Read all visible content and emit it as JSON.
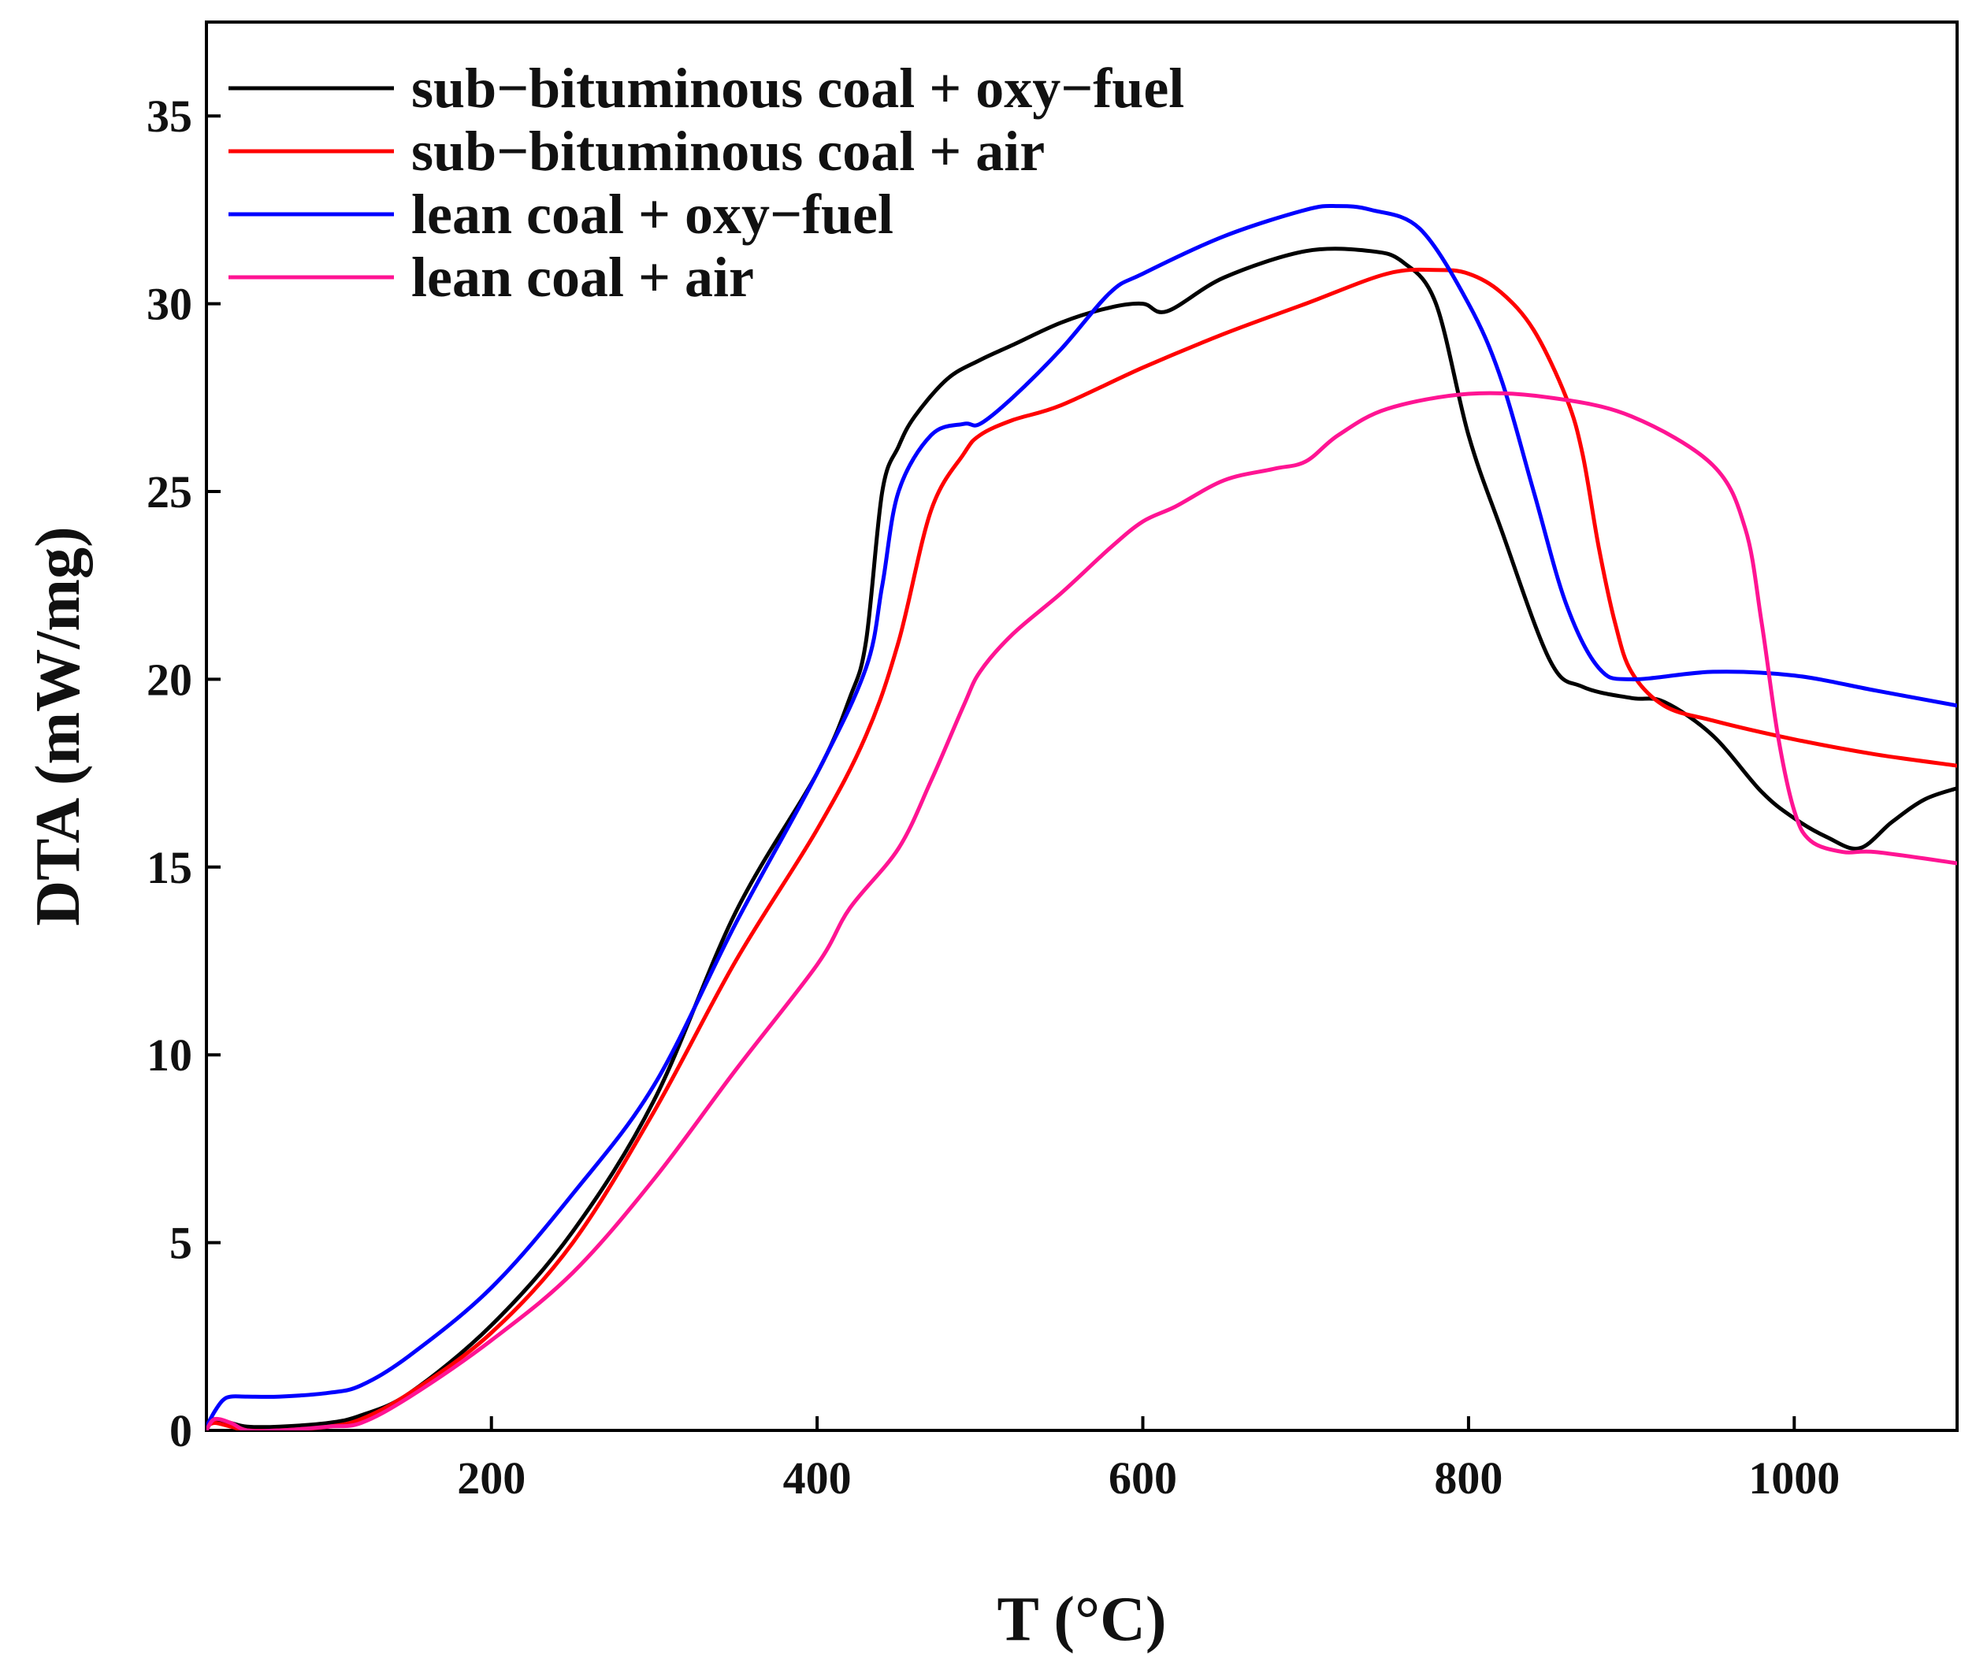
{
  "chart_data": {
    "type": "line",
    "title": "",
    "xlabel": "T (°C)",
    "ylabel": "DTA (mW/mg)",
    "xlim": [
      25,
      1100
    ],
    "ylim": [
      0,
      37.5
    ],
    "xticks": [
      {
        "value": 200,
        "label": "200"
      },
      {
        "value": 400,
        "label": "400"
      },
      {
        "value": 600,
        "label": "600"
      },
      {
        "value": 800,
        "label": "800"
      },
      {
        "value": 1000,
        "label": "1000"
      }
    ],
    "yticks": [
      {
        "value": 0,
        "label": "0"
      },
      {
        "value": 5,
        "label": "5"
      },
      {
        "value": 10,
        "label": "10"
      },
      {
        "value": 15,
        "label": "15"
      },
      {
        "value": 20,
        "label": "20"
      },
      {
        "value": 25,
        "label": "25"
      },
      {
        "value": 30,
        "label": "30"
      },
      {
        "value": 35,
        "label": "35"
      }
    ],
    "legend_position": "top-left",
    "grid": false,
    "series": [
      {
        "name": "sub−bituminous coal + oxy−fuel",
        "color": "#000000",
        "x": [
          25,
          30,
          40,
          50,
          70,
          100,
          120,
          150,
          200,
          250,
          300,
          350,
          400,
          420,
          430,
          440,
          450,
          460,
          480,
          500,
          520,
          550,
          580,
          600,
          615,
          650,
          700,
          740,
          760,
          780,
          800,
          820,
          850,
          870,
          900,
          920,
          950,
          980,
          1000,
          1020,
          1040,
          1060,
          1080,
          1100
        ],
        "y": [
          0.2,
          0.3,
          0.2,
          0.1,
          0.1,
          0.2,
          0.4,
          1.0,
          2.8,
          5.3,
          8.8,
          13.8,
          17.5,
          19.5,
          21.0,
          25.0,
          26.2,
          27.0,
          28.0,
          28.5,
          28.9,
          29.5,
          29.9,
          30.0,
          29.8,
          30.7,
          31.4,
          31.4,
          31.1,
          30.0,
          26.5,
          24.0,
          20.5,
          19.8,
          19.5,
          19.4,
          18.5,
          17.0,
          16.3,
          15.8,
          15.5,
          16.2,
          16.8,
          17.1
        ]
      },
      {
        "name": "sub−bituminous coal + air",
        "color": "#ff0000",
        "x": [
          25,
          30,
          40,
          50,
          70,
          100,
          120,
          150,
          200,
          250,
          300,
          350,
          400,
          430,
          450,
          470,
          490,
          500,
          520,
          550,
          600,
          650,
          700,
          750,
          780,
          800,
          820,
          840,
          860,
          870,
          880,
          890,
          900,
          920,
          950,
          1000,
          1050,
          1100
        ],
        "y": [
          0.1,
          0.2,
          0.1,
          0.0,
          0.0,
          0.1,
          0.3,
          1.0,
          2.6,
          5.0,
          8.5,
          12.5,
          16.0,
          18.5,
          21.0,
          24.5,
          26.0,
          26.5,
          26.9,
          27.3,
          28.3,
          29.2,
          30.0,
          30.8,
          30.9,
          30.8,
          30.3,
          29.3,
          27.5,
          26.0,
          23.5,
          21.5,
          20.2,
          19.3,
          18.9,
          18.4,
          18.0,
          17.7
        ]
      },
      {
        "name": "lean coal + oxy−fuel",
        "color": "#0000ff",
        "x": [
          25,
          30,
          35,
          40,
          50,
          70,
          100,
          120,
          150,
          200,
          250,
          300,
          350,
          400,
          430,
          440,
          450,
          470,
          490,
          500,
          520,
          550,
          580,
          600,
          650,
          700,
          720,
          740,
          770,
          800,
          820,
          840,
          860,
          880,
          900,
          950,
          1000,
          1050,
          1100
        ],
        "y": [
          0.1,
          0.5,
          0.8,
          0.9,
          0.9,
          0.9,
          1.0,
          1.2,
          2.0,
          3.8,
          6.3,
          9.2,
          13.5,
          17.5,
          20.3,
          22.5,
          25.0,
          26.5,
          26.8,
          26.8,
          27.5,
          28.8,
          30.3,
          30.8,
          31.8,
          32.5,
          32.6,
          32.5,
          32.0,
          30.0,
          28.0,
          25.0,
          22.0,
          20.3,
          20.0,
          20.2,
          20.1,
          19.7,
          19.3
        ]
      },
      {
        "name": "lean coal + air",
        "color": "#ff1493",
        "x": [
          25,
          30,
          40,
          50,
          70,
          100,
          120,
          150,
          200,
          250,
          300,
          350,
          400,
          420,
          450,
          470,
          490,
          500,
          520,
          550,
          580,
          600,
          620,
          650,
          680,
          700,
          720,
          750,
          800,
          850,
          900,
          950,
          970,
          980,
          990,
          1000,
          1010,
          1030,
          1050,
          1100
        ],
        "y": [
          0.0,
          0.3,
          0.2,
          0.0,
          0.0,
          0.1,
          0.2,
          0.9,
          2.4,
          4.2,
          6.7,
          9.6,
          12.4,
          13.9,
          15.5,
          17.3,
          19.3,
          20.2,
          21.2,
          22.3,
          23.5,
          24.2,
          24.6,
          25.3,
          25.6,
          25.8,
          26.5,
          27.2,
          27.6,
          27.5,
          27.0,
          25.7,
          24.0,
          21.5,
          18.5,
          16.5,
          15.7,
          15.4,
          15.4,
          15.1
        ]
      }
    ]
  }
}
